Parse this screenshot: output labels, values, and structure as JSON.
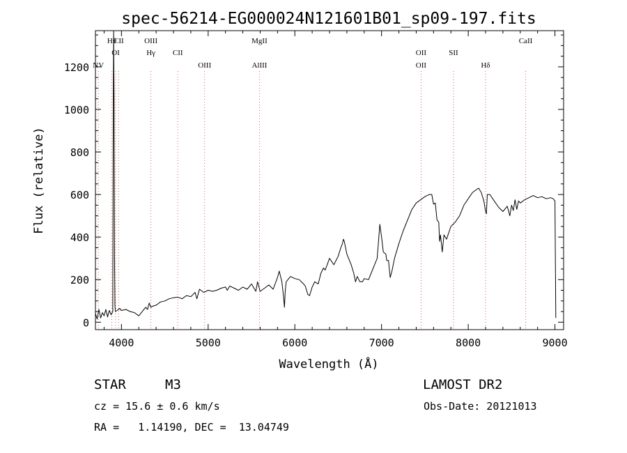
{
  "chart_data": {
    "type": "line",
    "title": "spec-56214-EG000024N121601B01_sp09-197.fits",
    "xlabel": "Wavelength (Å)",
    "ylabel": "Flux (relative)",
    "xlim": [
      3700,
      9100
    ],
    "ylim": [
      -35,
      1370
    ],
    "x_ticks": [
      4000,
      5000,
      6000,
      7000,
      8000,
      9000
    ],
    "y_ticks": [
      0,
      200,
      400,
      600,
      800,
      1000,
      1200
    ],
    "grid": false,
    "series": [
      {
        "x": [
          3700,
          3720,
          3740,
          3760,
          3780,
          3800,
          3820,
          3840,
          3860,
          3880,
          3900,
          3905,
          3910,
          3915,
          3920,
          3925,
          3930,
          3950,
          3980,
          4000,
          4050,
          4100,
          4150,
          4200,
          4230,
          4250,
          4280,
          4300,
          4320,
          4340,
          4360,
          4400,
          4450,
          4500,
          4550,
          4600,
          4650,
          4700,
          4750,
          4800,
          4850,
          4870,
          4900,
          4950,
          5000,
          5050,
          5100,
          5150,
          5200,
          5220,
          5250,
          5300,
          5350,
          5400,
          5450,
          5500,
          5550,
          5570,
          5600,
          5650,
          5700,
          5750,
          5800,
          5820,
          5850,
          5870,
          5880,
          5890,
          5900,
          5920,
          5950,
          6000,
          6050,
          6100,
          6120,
          6150,
          6170,
          6200,
          6230,
          6270,
          6300,
          6330,
          6350,
          6400,
          6450,
          6500,
          6530,
          6550,
          6560,
          6570,
          6600,
          6620,
          6650,
          6680,
          6700,
          6720,
          6750,
          6780,
          6800,
          6850,
          6900,
          6950,
          6980,
          7000,
          7020,
          7050,
          7060,
          7080,
          7100,
          7120,
          7150,
          7200,
          7250,
          7300,
          7350,
          7400,
          7450,
          7500,
          7550,
          7580,
          7600,
          7620,
          7640,
          7660,
          7670,
          7680,
          7700,
          7720,
          7750,
          7800,
          7850,
          7900,
          7950,
          8000,
          8050,
          8100,
          8120,
          8150,
          8180,
          8200,
          8210,
          8220,
          8250,
          8300,
          8350,
          8400,
          8450,
          8480,
          8500,
          8520,
          8540,
          8560,
          8580,
          8600,
          8650,
          8700,
          8750,
          8800,
          8850,
          8900,
          8950,
          8980,
          9000,
          9010
        ],
        "y": [
          40,
          15,
          60,
          20,
          45,
          30,
          60,
          25,
          55,
          35,
          50,
          900,
          1370,
          1000,
          300,
          80,
          50,
          55,
          65,
          55,
          60,
          50,
          45,
          30,
          45,
          55,
          70,
          60,
          90,
          70,
          75,
          80,
          95,
          100,
          110,
          115,
          118,
          110,
          125,
          120,
          140,
          110,
          155,
          140,
          150,
          145,
          150,
          160,
          165,
          150,
          170,
          160,
          150,
          165,
          155,
          180,
          145,
          190,
          145,
          160,
          175,
          155,
          210,
          240,
          190,
          120,
          70,
          150,
          190,
          200,
          215,
          205,
          200,
          180,
          170,
          130,
          125,
          165,
          190,
          180,
          230,
          255,
          245,
          300,
          270,
          310,
          350,
          370,
          390,
          380,
          320,
          300,
          270,
          230,
          190,
          215,
          190,
          190,
          205,
          200,
          250,
          300,
          460,
          400,
          330,
          320,
          290,
          290,
          210,
          240,
          300,
          370,
          430,
          480,
          530,
          560,
          575,
          590,
          600,
          600,
          555,
          560,
          480,
          470,
          380,
          410,
          330,
          410,
          390,
          450,
          470,
          500,
          550,
          580,
          610,
          625,
          630,
          610,
          570,
          520,
          510,
          600,
          600,
          570,
          540,
          520,
          545,
          500,
          550,
          525,
          575,
          530,
          570,
          560,
          575,
          585,
          595,
          585,
          590,
          580,
          585,
          580,
          570,
          20
        ]
      }
    ],
    "line_color": "#000000",
    "annotations": {
      "line_color": "#e05555",
      "line_style": "dotted",
      "lines": [
        {
          "x": 3734,
          "labels": [
            {
              "text": "NV",
              "row": 3
            }
          ]
        },
        {
          "x": 3889,
          "labels": [
            {
              "text": "Hθ",
              "row": 1
            }
          ]
        },
        {
          "x": 3933,
          "labels": [
            {
              "text": "OI",
              "row": 2
            }
          ]
        },
        {
          "x": 3968,
          "labels": [
            {
              "text": "CII",
              "row": 1
            }
          ]
        },
        {
          "x": 4340,
          "labels": [
            {
              "text": "OIII",
              "row": 1
            },
            {
              "text": "Hγ",
              "row": 2
            }
          ]
        },
        {
          "x": 4650,
          "labels": [
            {
              "text": "CII",
              "row": 2
            }
          ]
        },
        {
          "x": 4959,
          "labels": [
            {
              "text": "OIII",
              "row": 3
            }
          ]
        },
        {
          "x": 5592,
          "labels": [
            {
              "text": "MgII",
              "row": 1
            },
            {
              "text": "AlIII",
              "row": 3
            }
          ]
        },
        {
          "x": 7456,
          "labels": [
            {
              "text": "OII",
              "row": 2
            },
            {
              "text": "OII",
              "row": 3
            }
          ]
        },
        {
          "x": 7830,
          "labels": [
            {
              "text": "SII",
              "row": 2
            }
          ]
        },
        {
          "x": 8200,
          "labels": [
            {
              "text": "Hδ",
              "row": 3
            }
          ]
        },
        {
          "x": 8662,
          "labels": [
            {
              "text": "CaII",
              "row": 1
            }
          ]
        }
      ]
    }
  },
  "info": {
    "object_class": "STAR",
    "subclass": "M3",
    "survey": "LAMOST DR2",
    "redshift": "cz = 15.6 ± 0.6 km/s",
    "obs_date": "Obs-Date: 20121013",
    "coords": "RA =   1.14190, DEC =  13.04749"
  }
}
